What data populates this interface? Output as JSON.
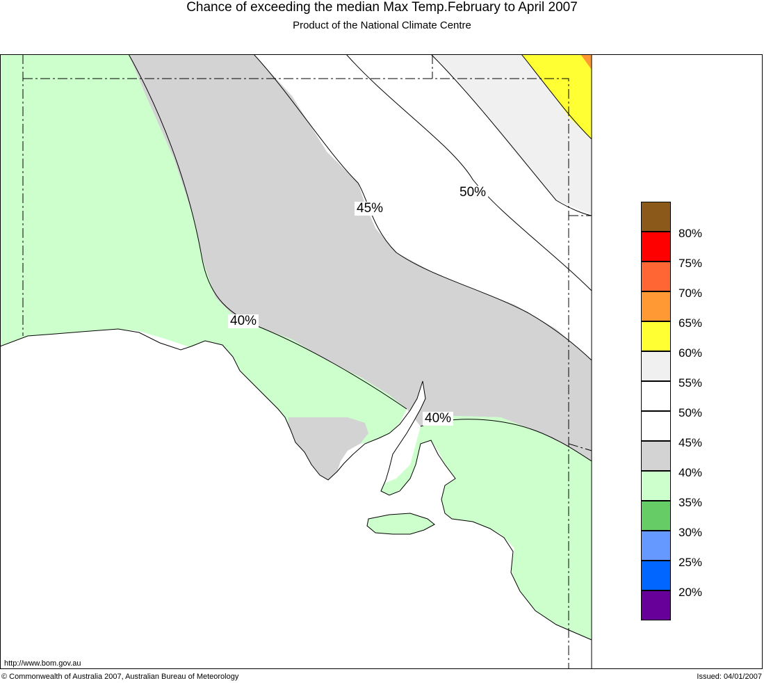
{
  "title": "Chance of exceeding the median Max Temp.February to April 2007",
  "subtitle": "Product of the National Climate Centre",
  "url": "http://www.bom.gov.au",
  "copyright": "© Commonwealth of Australia 2007, Australian Bureau of Meteorology",
  "issued": "Issued: 04/01/2007",
  "contour_labels": [
    "45%",
    "50%",
    "40%",
    "40%"
  ],
  "legend": {
    "colors": [
      "#8b5a1b",
      "#ff0000",
      "#ff6633",
      "#ff9933",
      "#ffff33",
      "#f0f0f0",
      "#ffffff",
      "#ffffff",
      "#d3d3d3",
      "#ccffcc",
      "#66cc66",
      "#6699ff",
      "#0066ff",
      "#660099"
    ],
    "labels": [
      "80%",
      "75%",
      "70%",
      "65%",
      "60%",
      "55%",
      "50%",
      "45%",
      "40%",
      "35%",
      "30%",
      "25%",
      "20%"
    ]
  },
  "regions": {
    "green": "#ccffcc",
    "grey": "#d3d3d3",
    "white": "#ffffff",
    "light_grey": "#f0f0f0",
    "yellow": "#ffff33",
    "orange": "#ff9933"
  }
}
